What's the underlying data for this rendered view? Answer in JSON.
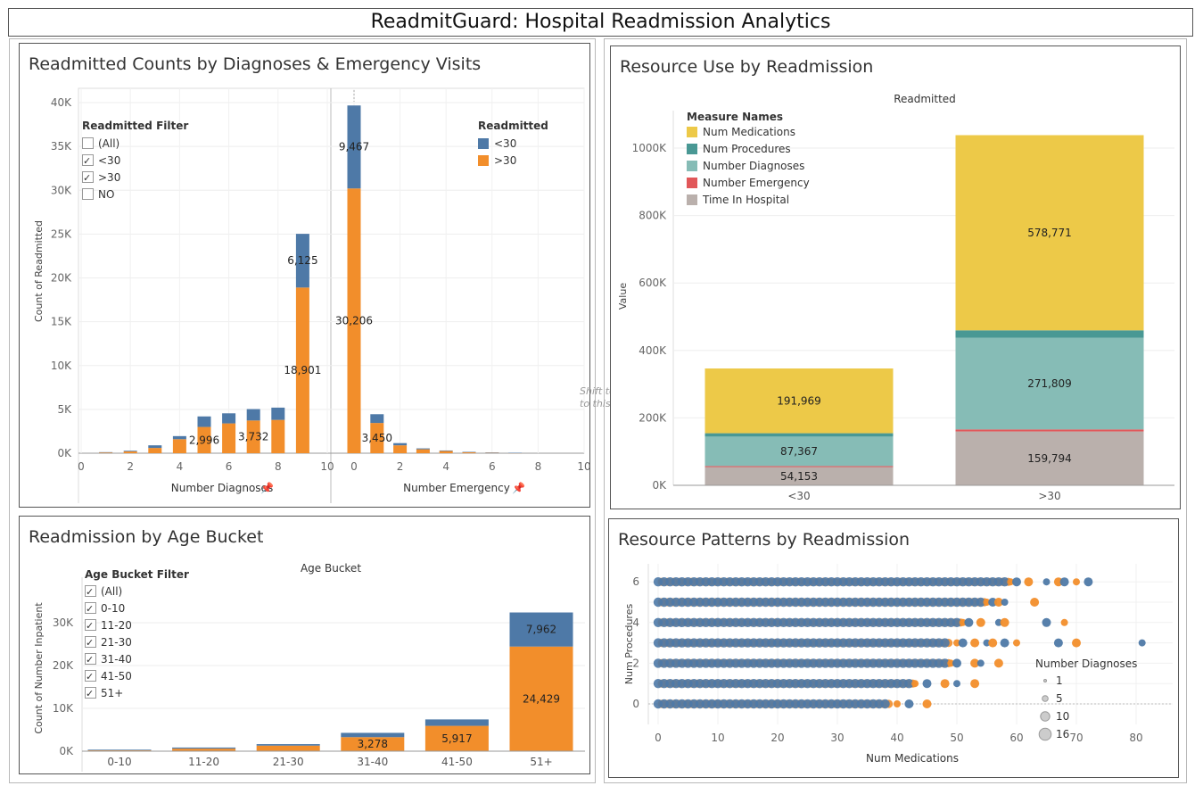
{
  "dashboard_title": "ReadmitGuard: Hospital Readmission Analytics",
  "colors": {
    "lt30": "#4e79a7",
    "gt30": "#f28e2b",
    "num_medications": "#edc948",
    "num_procedures": "#499894",
    "number_diagnoses": "#86bcb6",
    "number_emergency": "#e15759",
    "time_in_hospital": "#bab0ac"
  },
  "panel1": {
    "title": "Readmitted Counts by Diagnoses & Emergency Visits",
    "filter_title": "Readmitted Filter",
    "filter_items": [
      {
        "label": "(All)",
        "checked": false
      },
      {
        "label": "<30",
        "checked": true
      },
      {
        "label": ">30",
        "checked": true
      },
      {
        "label": "NO",
        "checked": false
      }
    ],
    "legend_title": "Readmitted",
    "legend_items": [
      "<30",
      ">30"
    ],
    "shift_hint": "Shift to ... to this"
  },
  "panel2": {
    "title": "Resource Use by Readmission",
    "legend_title": "Measure Names",
    "legend_items": [
      "Num Medications",
      "Num Procedures",
      "Number Diagnoses",
      "Number Emergency",
      "Time In Hospital"
    ]
  },
  "panel3": {
    "title": "Readmission by Age Bucket",
    "filter_title": "Age Bucket Filter",
    "filter_items": [
      {
        "label": "(All)",
        "checked": true
      },
      {
        "label": "0-10",
        "checked": true
      },
      {
        "label": "11-20",
        "checked": true
      },
      {
        "label": "21-30",
        "checked": true
      },
      {
        "label": "31-40",
        "checked": true
      },
      {
        "label": "41-50",
        "checked": true
      },
      {
        "label": "51+",
        "checked": true
      }
    ]
  },
  "panel4": {
    "title": "Resource Patterns by Readmission",
    "size_legend_title": "Number Diagnoses",
    "size_legend_items": [
      "1",
      "5",
      "10",
      "16"
    ]
  },
  "chart_data": [
    {
      "type": "bar",
      "title": "Readmitted Counts by Diagnoses & Emergency Visits",
      "xlabel": "Number Diagnoses",
      "ylabel": "Count of Readmitted",
      "ylim": [
        0,
        40000
      ],
      "yticks": [
        "0K",
        "5K",
        "10K",
        "15K",
        "20K",
        "25K",
        "30K",
        "35K",
        "40K"
      ],
      "xticks": [
        "0",
        "2",
        "4",
        "6",
        "8",
        "10"
      ],
      "stacked": true,
      "x": [
        1,
        2,
        3,
        4,
        5,
        6,
        7,
        8,
        9
      ],
      "series": [
        {
          "name": ">30",
          "values": [
            80,
            200,
            600,
            1600,
            2996,
            3400,
            3732,
            3800,
            18901
          ],
          "labels": [
            "",
            "",
            "",
            "",
            "2,996",
            "",
            "3,732",
            "",
            "18,901"
          ]
        },
        {
          "name": "<30",
          "values": [
            40,
            80,
            300,
            350,
            1200,
            1150,
            1300,
            1400,
            6125
          ],
          "labels": [
            "",
            "",
            "",
            "",
            "",
            "",
            "",
            "",
            "6,125"
          ]
        }
      ]
    },
    {
      "type": "bar",
      "xlabel": "Number Emergency",
      "ylim": [
        0,
        40000
      ],
      "xticks": [
        "0",
        "2",
        "4",
        "6",
        "8",
        "10"
      ],
      "stacked": true,
      "x": [
        0,
        1,
        2,
        3,
        4,
        5,
        6,
        7
      ],
      "series": [
        {
          "name": ">30",
          "values": [
            30206,
            3450,
            900,
            450,
            250,
            120,
            60,
            40
          ],
          "labels": [
            "30,206",
            "3,450",
            "",
            "",
            "",
            "",
            "",
            ""
          ]
        },
        {
          "name": "<30",
          "values": [
            9467,
            1000,
            250,
            100,
            60,
            30,
            20,
            10
          ],
          "labels": [
            "9,467",
            "",
            "",
            "",
            "",
            "",
            "",
            ""
          ]
        }
      ]
    },
    {
      "type": "bar",
      "title": "Resource Use by Readmission",
      "column_header": "Readmitted",
      "ylabel": "Value",
      "ylim": [
        0,
        1100000
      ],
      "yticks": [
        "0K",
        "200K",
        "400K",
        "600K",
        "800K",
        "1000K"
      ],
      "categories": [
        "<30",
        ">30"
      ],
      "stacked": true,
      "series": [
        {
          "name": "Time In Hospital",
          "values": [
            54153,
            159794
          ],
          "labels": [
            "54,153",
            "159,794"
          ]
        },
        {
          "name": "Number Emergency",
          "values": [
            3000,
            6000
          ],
          "labels": [
            "",
            ""
          ]
        },
        {
          "name": "Number Diagnoses",
          "values": [
            87367,
            271809
          ],
          "labels": [
            "87,367",
            "271,809"
          ]
        },
        {
          "name": "Num Procedures",
          "values": [
            10000,
            22000
          ],
          "labels": [
            "",
            ""
          ]
        },
        {
          "name": "Num Medications",
          "values": [
            191969,
            578771
          ],
          "labels": [
            "191,969",
            "578,771"
          ]
        }
      ]
    },
    {
      "type": "bar",
      "title": "Readmission by Age Bucket",
      "column_header": "Age Bucket",
      "ylabel": "Count of Number Inpatient",
      "ylim": [
        0,
        33000
      ],
      "yticks": [
        "0K",
        "10K",
        "20K",
        "30K"
      ],
      "categories": [
        "0-10",
        "11-20",
        "21-30",
        "31-40",
        "41-50",
        "51+"
      ],
      "stacked": true,
      "series": [
        {
          "name": ">30",
          "values": [
            200,
            600,
            1300,
            3278,
            5917,
            24429
          ],
          "labels": [
            "",
            "",
            "",
            "3,278",
            "5,917",
            "24,429"
          ]
        },
        {
          "name": "<30",
          "values": [
            150,
            250,
            350,
            1000,
            1500,
            7962
          ],
          "labels": [
            "",
            "",
            "",
            "",
            "",
            "7,962"
          ]
        }
      ]
    },
    {
      "type": "scatter",
      "title": "Resource Patterns by Readmission",
      "xlabel": "Num Medications",
      "ylabel": "Num Procedures",
      "xlim": [
        0,
        83
      ],
      "ylim": [
        -0.7,
        6.6
      ],
      "xticks": [
        "0",
        "10",
        "20",
        "30",
        "40",
        "50",
        "60",
        "70",
        "80"
      ],
      "yticks": [
        "0",
        "2",
        "4",
        "6"
      ],
      "rows": [
        {
          "y": 6,
          "dense_to": 58,
          "extra_x": [
            59,
            60,
            62,
            65,
            67,
            68,
            70,
            72
          ]
        },
        {
          "y": 5,
          "dense_to": 54,
          "extra_x": [
            55,
            56,
            57,
            58,
            63
          ]
        },
        {
          "y": 4,
          "dense_to": 50,
          "extra_x": [
            51,
            52,
            54,
            57,
            58,
            65,
            68
          ]
        },
        {
          "y": 3,
          "dense_to": 48,
          "extra_x": [
            50,
            51,
            53,
            55,
            56,
            58,
            60,
            67,
            70,
            81
          ]
        },
        {
          "y": 2,
          "dense_to": 48,
          "extra_x": [
            49,
            50,
            53,
            54,
            57
          ]
        },
        {
          "y": 1,
          "dense_to": 42,
          "extra_x": [
            43,
            45,
            48,
            50,
            53
          ]
        },
        {
          "y": 0,
          "dense_to": 38,
          "extra_x": [
            40,
            42,
            45
          ]
        }
      ]
    }
  ]
}
